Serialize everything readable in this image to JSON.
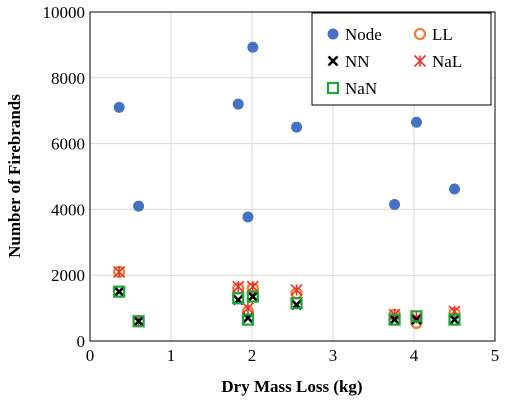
{
  "chart_data": {
    "type": "scatter",
    "title": "",
    "xlabel": "Dry Mass Loss (kg)",
    "ylabel": "Number of Firebrands",
    "xlim": [
      0,
      5
    ],
    "ylim": [
      0,
      10000
    ],
    "xticks": [
      0,
      1,
      2,
      3,
      4,
      5
    ],
    "yticks": [
      0,
      2000,
      4000,
      6000,
      8000,
      10000
    ],
    "grid": true,
    "legend": "top-right",
    "series": [
      {
        "name": "Node",
        "marker": "circle",
        "color": "#4472C4",
        "points": [
          [
            0.36,
            7100
          ],
          [
            0.6,
            4100
          ],
          [
            1.83,
            7200
          ],
          [
            1.95,
            3770
          ],
          [
            2.01,
            8930
          ],
          [
            2.55,
            6500
          ],
          [
            3.76,
            4150
          ],
          [
            4.03,
            6650
          ],
          [
            4.5,
            4620
          ]
        ]
      },
      {
        "name": "LL",
        "marker": "open-circle",
        "color": "#ED7D31",
        "points": [
          [
            0.36,
            2100
          ],
          [
            0.6,
            600
          ],
          [
            1.83,
            1600
          ],
          [
            1.95,
            900
          ],
          [
            2.01,
            1600
          ],
          [
            2.55,
            1450
          ],
          [
            3.76,
            800
          ],
          [
            4.03,
            550
          ],
          [
            4.5,
            850
          ]
        ]
      },
      {
        "name": "NN",
        "marker": "x",
        "color": "#000000",
        "points": [
          [
            0.36,
            1500
          ],
          [
            0.6,
            600
          ],
          [
            1.83,
            1250
          ],
          [
            1.95,
            700
          ],
          [
            2.01,
            1350
          ],
          [
            2.55,
            1100
          ],
          [
            3.76,
            650
          ],
          [
            4.03,
            650
          ],
          [
            4.5,
            650
          ]
        ]
      },
      {
        "name": "NaL",
        "marker": "asterisk",
        "color": "#E8322A",
        "points": [
          [
            0.36,
            2100
          ],
          [
            0.6,
            600
          ],
          [
            1.83,
            1650
          ],
          [
            1.95,
            1000
          ],
          [
            2.01,
            1650
          ],
          [
            2.55,
            1550
          ],
          [
            3.76,
            800
          ],
          [
            4.03,
            700
          ],
          [
            4.5,
            900
          ]
        ]
      },
      {
        "name": "NaN",
        "marker": "open-square",
        "color": "#1FA33A",
        "points": [
          [
            0.36,
            1500
          ],
          [
            0.6,
            600
          ],
          [
            1.83,
            1300
          ],
          [
            1.95,
            650
          ],
          [
            2.01,
            1350
          ],
          [
            2.55,
            1150
          ],
          [
            3.76,
            650
          ],
          [
            4.03,
            750
          ],
          [
            4.5,
            650
          ]
        ]
      }
    ]
  }
}
